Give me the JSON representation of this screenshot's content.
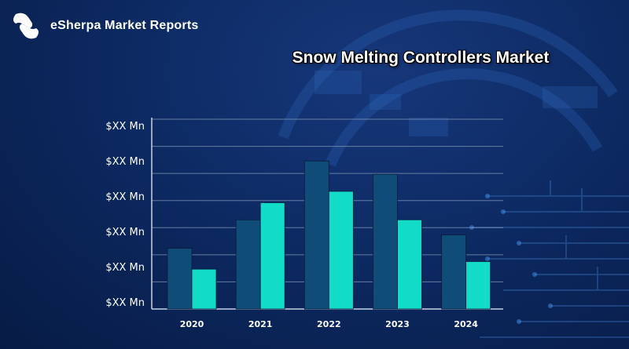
{
  "brand": {
    "name": "eSherpa Market Reports"
  },
  "colors": {
    "series_dark": "#0f4d78",
    "series_light": "#12dcc7",
    "gridline": "#8e9fbf",
    "background": "#0d2a63"
  },
  "chart_data": {
    "type": "bar",
    "title": "Snow Melting Controllers Market",
    "xlabel": "",
    "ylabel": "",
    "categories": [
      "2020",
      "2021",
      "2022",
      "2023",
      "2024"
    ],
    "y_tick_labels": [
      "$XX Mn",
      "$XX Mn",
      "$XX Mn",
      "$XX Mn",
      "$XX Mn",
      "$XX Mn"
    ],
    "ylim": [
      0,
      5
    ],
    "grid": true,
    "series": [
      {
        "values": [
          1.6,
          2.35,
          3.9,
          3.55,
          1.95
        ]
      },
      {
        "values": [
          1.05,
          2.8,
          3.1,
          2.35,
          1.25
        ]
      }
    ]
  }
}
